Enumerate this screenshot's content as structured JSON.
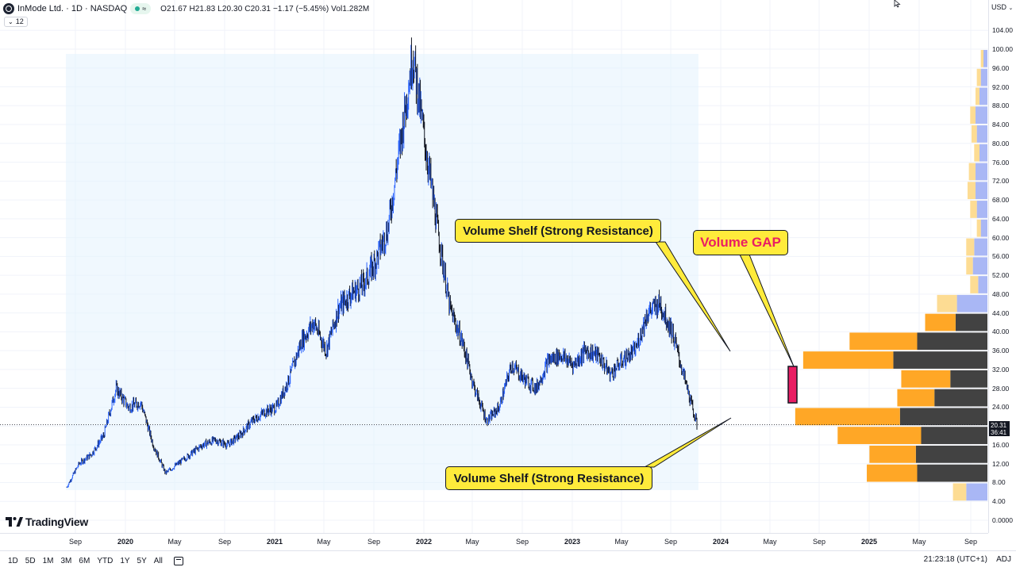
{
  "header": {
    "symbol": "InMode Ltd. · 1D · NASDAQ",
    "ohlc": "O21.67 H21.83 L20.30 C20.31 −1.17 (−5.45%) Vol1.282M",
    "eye_badge": "≈",
    "indicator_badge": "12"
  },
  "price_scale": {
    "currency": "USD",
    "labels": [
      "104.00",
      "100.00",
      "96.00",
      "92.00",
      "88.00",
      "84.00",
      "80.00",
      "76.00",
      "72.00",
      "68.00",
      "64.00",
      "60.00",
      "56.00",
      "52.00",
      "48.00",
      "44.00",
      "40.00",
      "36.00",
      "32.00",
      "28.00",
      "24.00",
      "20.00",
      "16.00",
      "12.00",
      "8.00",
      "4.00",
      "0.0000"
    ],
    "last_price": "20.31",
    "countdown": "36:41"
  },
  "time_axis": {
    "labels": [
      "Sep",
      "2020",
      "May",
      "Sep",
      "2021",
      "May",
      "Sep",
      "2022",
      "May",
      "Sep",
      "2023",
      "May",
      "Sep",
      "2024",
      "May",
      "Sep",
      "2025",
      "May",
      "Sep"
    ]
  },
  "annotations": {
    "shelf_upper": "Volume Shelf (Strong Resistance)",
    "shelf_lower": "Volume Shelf (Strong Resistance)",
    "gap": "Volume GAP"
  },
  "bottom_bar": {
    "timeframes": [
      "1D",
      "5D",
      "1M",
      "3M",
      "6M",
      "YTD",
      "1Y",
      "5Y",
      "All"
    ],
    "clock": "21:23:18 (UTC+1)",
    "adj": "ADJ"
  },
  "brand": "TradingView",
  "colors": {
    "up": "#2962ff",
    "down": "#131722",
    "shaded_region": "#e3f2fd",
    "profile_orange": "#ffa726",
    "profile_dark": "#424242",
    "profile_light_yellow": "#fddc93",
    "profile_light_blue": "#a9b7f5",
    "callout": "#ffeb3b",
    "gap_marker": "#e91e63"
  },
  "chart_data": {
    "type": "line",
    "title": "InMode Ltd. · 1D · NASDAQ",
    "ylim": [
      0,
      104
    ],
    "x": [
      "2019-08",
      "2019-09",
      "2019-10",
      "2019-11",
      "2019-12",
      "2020-01",
      "2020-02",
      "2020-03",
      "2020-04",
      "2020-05",
      "2020-06",
      "2020-07",
      "2020-08",
      "2020-09",
      "2020-10",
      "2020-11",
      "2020-12",
      "2021-01",
      "2021-02",
      "2021-03",
      "2021-04",
      "2021-05",
      "2021-06",
      "2021-07",
      "2021-08",
      "2021-09",
      "2021-10",
      "2021-11",
      "2021-12",
      "2022-01",
      "2022-02",
      "2022-03",
      "2022-04",
      "2022-05",
      "2022-06",
      "2022-07",
      "2022-08",
      "2022-09",
      "2022-10",
      "2022-11",
      "2022-12",
      "2023-01",
      "2023-02",
      "2023-03",
      "2023-04",
      "2023-05",
      "2023-06",
      "2023-07",
      "2023-08",
      "2023-09",
      "2023-10",
      "2023-11"
    ],
    "series": [
      {
        "values": [
          7,
          12,
          14,
          18,
          28,
          24,
          25,
          16,
          10,
          12,
          14,
          16,
          17,
          16,
          18,
          21,
          23,
          24,
          30,
          38,
          42,
          36,
          45,
          48,
          50,
          55,
          62,
          80,
          99,
          80,
          62,
          45,
          38,
          28,
          21,
          24,
          33,
          30,
          28,
          34,
          35,
          33,
          36,
          35,
          31,
          34,
          36,
          44,
          46,
          40,
          30,
          20.31
        ]
      }
    ],
    "volume_profile": [
      {
        "price_low": 96,
        "price_high": 100,
        "up_volume": 2,
        "down_volume": 3
      },
      {
        "price_low": 92,
        "price_high": 96,
        "up_volume": 3,
        "down_volume": 5
      },
      {
        "price_low": 88,
        "price_high": 92,
        "up_volume": 3,
        "down_volume": 6
      },
      {
        "price_low": 84,
        "price_high": 88,
        "up_volume": 4,
        "down_volume": 9
      },
      {
        "price_low": 80,
        "price_high": 84,
        "up_volume": 4,
        "down_volume": 8
      },
      {
        "price_low": 76,
        "price_high": 80,
        "up_volume": 4,
        "down_volume": 6
      },
      {
        "price_low": 72,
        "price_high": 76,
        "up_volume": 5,
        "down_volume": 9
      },
      {
        "price_low": 68,
        "price_high": 72,
        "up_volume": 6,
        "down_volume": 9
      },
      {
        "price_low": 64,
        "price_high": 68,
        "up_volume": 5,
        "down_volume": 8
      },
      {
        "price_low": 60,
        "price_high": 64,
        "up_volume": 3,
        "down_volume": 5
      },
      {
        "price_low": 56,
        "price_high": 60,
        "up_volume": 6,
        "down_volume": 10
      },
      {
        "price_low": 52,
        "price_high": 56,
        "up_volume": 5,
        "down_volume": 11
      },
      {
        "price_low": 48,
        "price_high": 52,
        "up_volume": 6,
        "down_volume": 7
      },
      {
        "price_low": 44,
        "price_high": 48,
        "up_volume": 15,
        "down_volume": 23
      },
      {
        "price_low": 40,
        "price_high": 44,
        "up_volume": 23,
        "down_volume": 24
      },
      {
        "price_low": 36,
        "price_high": 40,
        "up_volume": 51,
        "down_volume": 53
      },
      {
        "price_low": 32,
        "price_high": 36,
        "up_volume": 68,
        "down_volume": 71
      },
      {
        "price_low": 28,
        "price_high": 32,
        "up_volume": 37,
        "down_volume": 28
      },
      {
        "price_low": 24,
        "price_high": 28,
        "up_volume": 28,
        "down_volume": 40
      },
      {
        "price_low": 20,
        "price_high": 24,
        "up_volume": 79,
        "down_volume": 66
      },
      {
        "price_low": 16,
        "price_high": 20,
        "up_volume": 63,
        "down_volume": 50
      },
      {
        "price_low": 12,
        "price_high": 16,
        "up_volume": 35,
        "down_volume": 54
      },
      {
        "price_low": 8,
        "price_high": 12,
        "up_volume": 38,
        "down_volume": 53
      },
      {
        "price_low": 4,
        "price_high": 8,
        "up_volume": 10,
        "down_volume": 16
      }
    ]
  }
}
